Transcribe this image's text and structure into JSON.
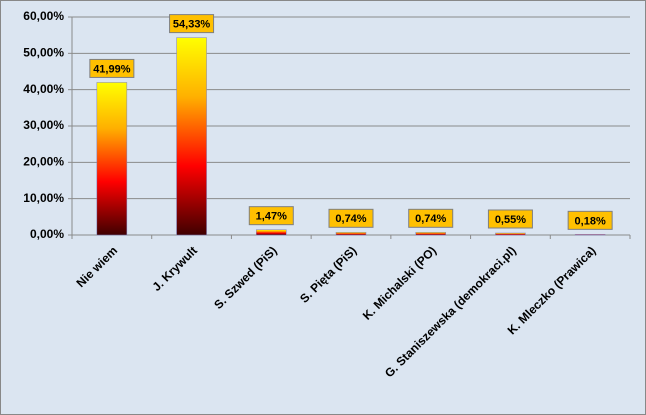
{
  "chart_data": {
    "type": "bar",
    "categories": [
      "Nie wiem",
      "J. Krywult",
      "S. Szwed (PiS)",
      "S. Pięta (PiS)",
      "K. Michalski (PO)",
      "G. Staniszewska (demokraci.pl)",
      "K. Mleczko (Prawica)"
    ],
    "values": [
      41.99,
      54.33,
      1.47,
      0.74,
      0.74,
      0.55,
      0.18
    ],
    "value_labels": [
      "41,99%",
      "54,33%",
      "1,47%",
      "0,74%",
      "0,74%",
      "0,55%",
      "0,18%"
    ],
    "ylim": [
      0,
      60
    ],
    "yticks": [
      {
        "value": 0,
        "label": "0,00%"
      },
      {
        "value": 10,
        "label": "10,00%"
      },
      {
        "value": 20,
        "label": "20,00%"
      },
      {
        "value": 30,
        "label": "30,00%"
      },
      {
        "value": 40,
        "label": "40,00%"
      },
      {
        "value": 50,
        "label": "50,00%"
      },
      {
        "value": 60,
        "label": "60,00%"
      }
    ],
    "grid": true
  }
}
